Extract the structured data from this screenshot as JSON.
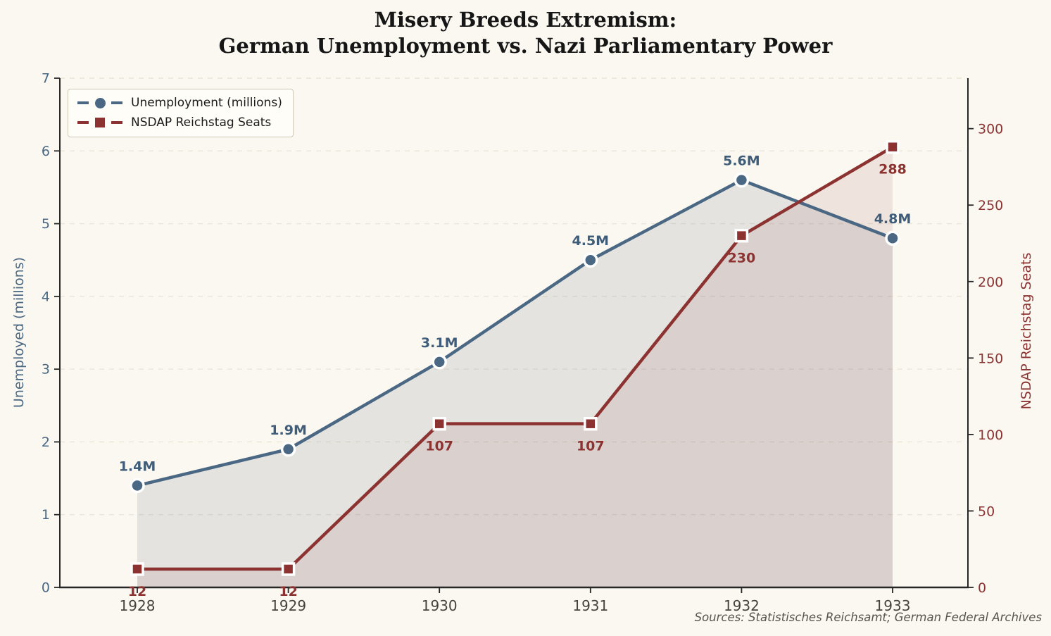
{
  "page": {
    "title_line1": "Misery Breeds Extremism:",
    "title_line2": "German Unemployment vs. Nazi Parliamentary Power",
    "source": "Sources: Statistisches Reichsamt; German Federal Archives"
  },
  "chart_data": {
    "type": "line",
    "title": "Misery Breeds Extremism: German Unemployment vs. Nazi Parliamentary Power",
    "categories": [
      "1928",
      "1929",
      "1930",
      "1931",
      "1932",
      "1933"
    ],
    "series": [
      {
        "id": "unemployment",
        "name": "Unemployment (millions)",
        "axis": "left",
        "values": [
          1.4,
          1.9,
          3.1,
          4.5,
          5.6,
          4.8
        ],
        "point_labels": [
          "1.4M",
          "1.9M",
          "3.1M",
          "4.5M",
          "5.6M",
          "4.8M"
        ],
        "color": "#4a6883",
        "label_color": "#3f5c78",
        "fill_color": "rgba(100,110,120,0.15)",
        "marker": "circle",
        "label_position": "above"
      },
      {
        "id": "nsdap-seats",
        "name": "NSDAP Reichstag Seats",
        "axis": "right",
        "values": [
          12,
          12,
          107,
          107,
          230,
          288
        ],
        "point_labels": [
          "12",
          "12",
          "107",
          "107",
          "230",
          "288"
        ],
        "color": "#8c3332",
        "label_color": "#8c3332",
        "fill_color": "rgba(140,51,50,0.10)",
        "marker": "square",
        "label_position": "below"
      }
    ],
    "left_axis": {
      "label": "Unemployed (millions)",
      "ticks": [
        0,
        1,
        2,
        3,
        4,
        5,
        6,
        7
      ],
      "range": [
        0,
        7
      ],
      "color": "#4a6883"
    },
    "right_axis": {
      "label": "NSDAP Reichstag Seats",
      "ticks": [
        0,
        50,
        100,
        150,
        200,
        250,
        300
      ],
      "range": [
        0,
        333
      ],
      "color": "#8c3332"
    },
    "x_axis": {
      "tick_labels": [
        "1928",
        "1929",
        "1930",
        "1931",
        "1932",
        "1933"
      ],
      "color": "#45443c"
    },
    "grid": {
      "style": "horizontal-dashed",
      "color": "#eae6d8"
    },
    "legend": {
      "position": "upper-left"
    },
    "background": "#fbf8f1"
  }
}
